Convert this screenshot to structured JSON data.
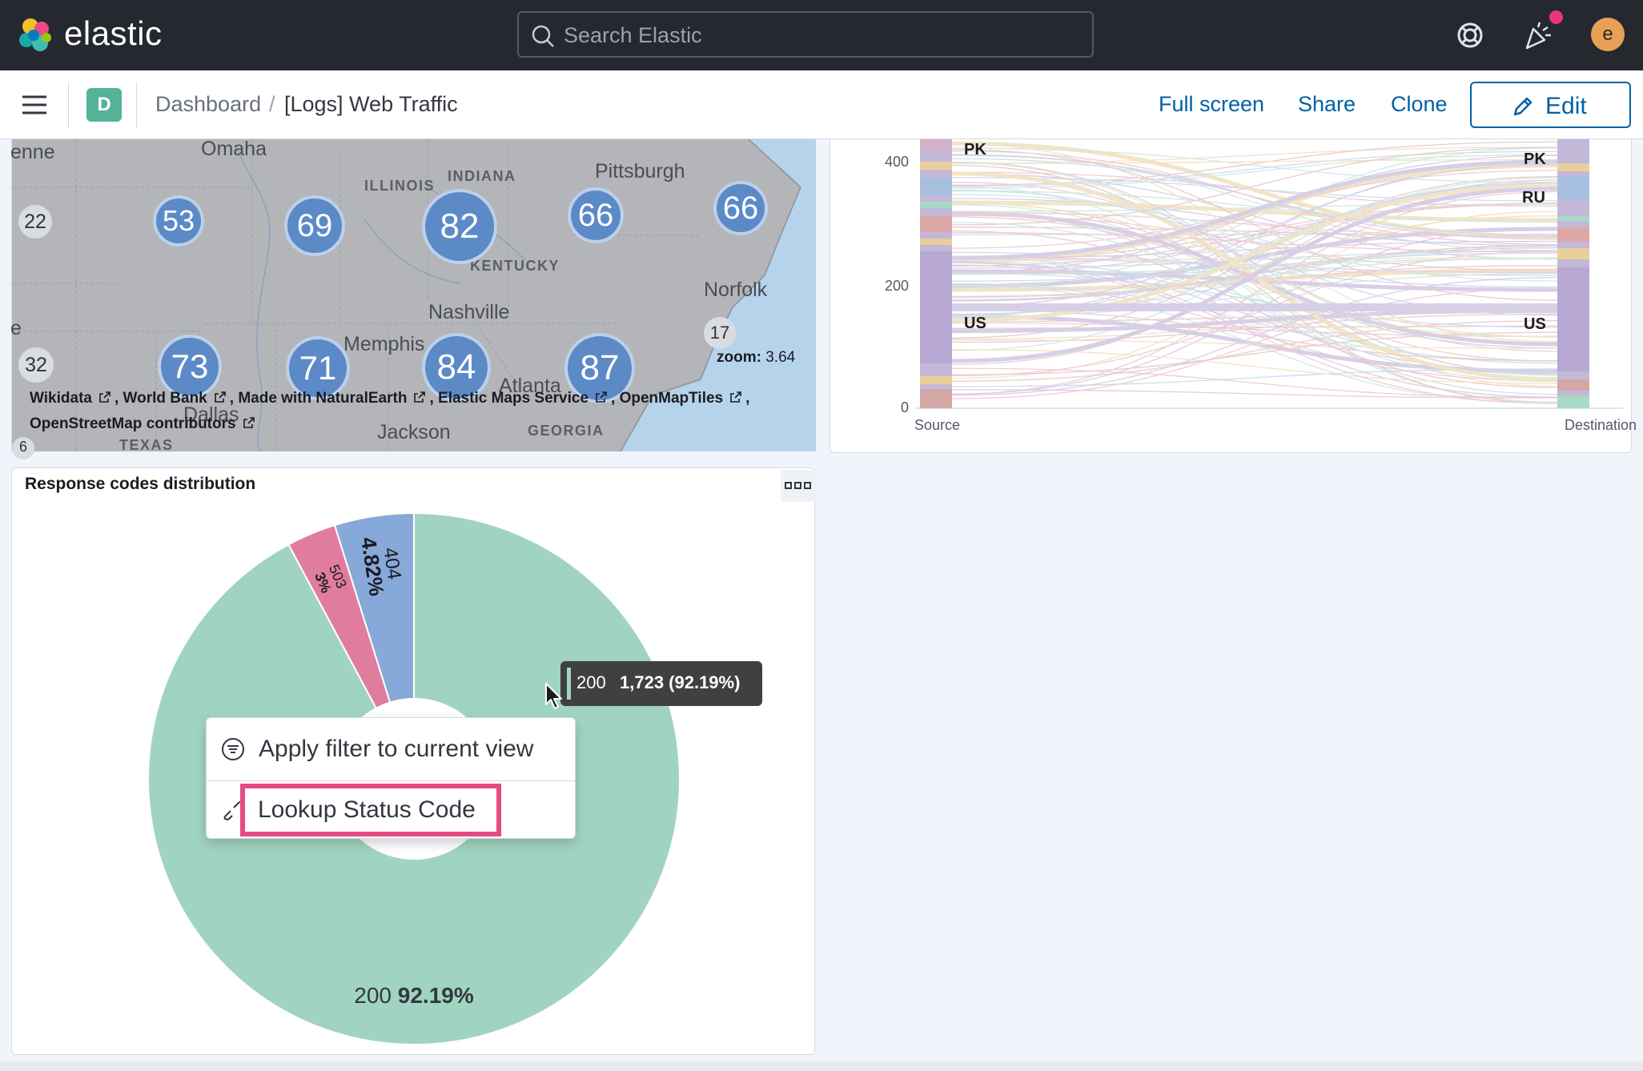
{
  "header": {
    "brand": "elastic",
    "search_placeholder": "Search Elastic",
    "avatar_initial": "e",
    "icons": [
      "elastic-logo-icon",
      "search-icon",
      "help-icon",
      "newsfeed-icon",
      "user-avatar"
    ]
  },
  "subbar": {
    "space_initial": "D",
    "breadcrumb": [
      "Dashboard",
      "[Logs] Web Traffic"
    ],
    "separator": "/",
    "actions": {
      "full_screen": "Full screen",
      "share": "Share",
      "clone": "Clone",
      "edit": "Edit"
    }
  },
  "map": {
    "places": [
      "enne",
      "Omaha",
      "ILLINOIS",
      "INDIANA",
      "Pittsburgh",
      "KENTUCKY",
      "Norfolk",
      "Nashville",
      "Memphis",
      "Atlanta",
      "Jackson",
      "GEORGIA",
      "TEXAS",
      "Dallas",
      "e"
    ],
    "clusters": [
      "22",
      "53",
      "69",
      "82",
      "66",
      "66",
      "32",
      "73",
      "71",
      "84",
      "87",
      "17",
      "6"
    ],
    "zoom_label": "zoom:",
    "zoom_value": "3.64",
    "attribution": [
      "Wikidata",
      "World Bank",
      "Made with NaturalEarth",
      "Elastic Maps Service",
      "OpenMapTiles",
      "OpenStreetMap contributors"
    ]
  },
  "sankey": {
    "y_ticks": [
      "400",
      "200",
      "0"
    ],
    "source_labels": [
      "PK",
      "US"
    ],
    "destination_labels": [
      "PK",
      "RU",
      "US"
    ],
    "x_labels": [
      "Source",
      "Destination"
    ]
  },
  "pie_panel": {
    "title": "Response codes distribution",
    "menu_icon": "options-menu-icon"
  },
  "chart_data": {
    "type": "pie",
    "title": "Response codes distribution",
    "donut": true,
    "slices": [
      {
        "label": "200",
        "count": 1723,
        "percent": 92.19,
        "percent_text": "92.19%",
        "color": "#a0d4c1"
      },
      {
        "label": "503",
        "percent": 3.0,
        "percent_text": "3%",
        "color": "#e07d9f"
      },
      {
        "label": "404",
        "percent": 4.82,
        "percent_text": "4.82%",
        "color": "#87a9d9"
      }
    ]
  },
  "tooltip": {
    "category": "200",
    "value": "1,723 (92.19%)",
    "swatch_color": "#a3d5c3"
  },
  "context_menu": {
    "apply_filter": "Apply filter to current view",
    "lookup": "Lookup Status Code",
    "highlight_color": "#e44b85"
  }
}
